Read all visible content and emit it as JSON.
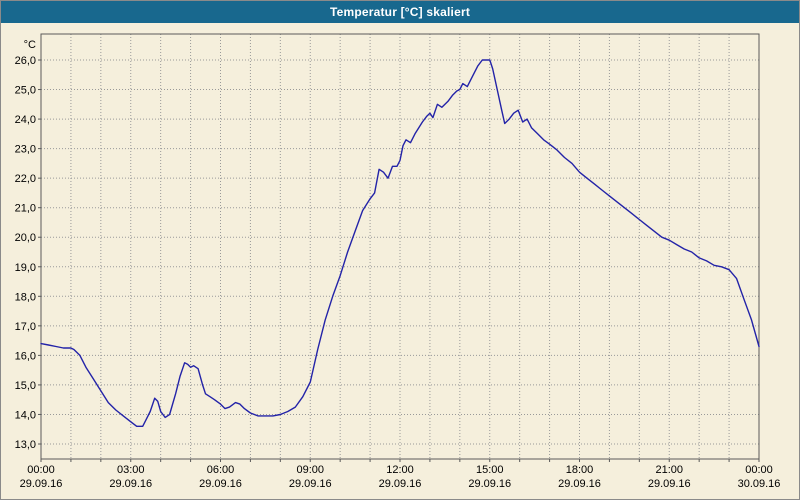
{
  "window": {
    "title": "Temperatur [°C] skaliert"
  },
  "colors": {
    "title_bar": "#18688e",
    "title_text": "#ffffff",
    "background": "#f5efdc",
    "grid": "#999999",
    "frame": "#5a5a5a",
    "text": "#000000",
    "line": "#2323a8"
  },
  "chart_data": {
    "type": "line",
    "title": "Temperatur [°C] skaliert",
    "unit_label": "°C",
    "ylabel": "Temperatur [°C]",
    "ylim": [
      13.0,
      26.0
    ],
    "y_tick_step": 1.0,
    "y_tick_labels": [
      "13,0",
      "14,0",
      "15,0",
      "16,0",
      "17,0",
      "18,0",
      "19,0",
      "20,0",
      "21,0",
      "22,0",
      "23,0",
      "24,0",
      "25,0",
      "26,0"
    ],
    "grid": "dotted",
    "legend_position": "none",
    "x_axis": {
      "hours_span": 24,
      "major_tick_hours": 3,
      "minor_tick_hours": 1,
      "ticks": [
        {
          "time": "00:00",
          "date": "29.09.16"
        },
        {
          "time": "03:00",
          "date": "29.09.16"
        },
        {
          "time": "06:00",
          "date": "29.09.16"
        },
        {
          "time": "09:00",
          "date": "29.09.16"
        },
        {
          "time": "12:00",
          "date": "29.09.16"
        },
        {
          "time": "15:00",
          "date": "29.09.16"
        },
        {
          "time": "18:00",
          "date": "29.09.16"
        },
        {
          "time": "21:00",
          "date": "29.09.16"
        },
        {
          "time": "00:00",
          "date": "30.09.16"
        }
      ]
    },
    "series": [
      {
        "name": "Temperatur",
        "color": "#2323a8",
        "points": [
          [
            0,
            16.4
          ],
          [
            0.25,
            16.35
          ],
          [
            0.5,
            16.3
          ],
          [
            0.75,
            16.25
          ],
          [
            1.0,
            16.25
          ],
          [
            1.1,
            16.2
          ],
          [
            1.3,
            16.0
          ],
          [
            1.5,
            15.6
          ],
          [
            1.75,
            15.2
          ],
          [
            2.0,
            14.8
          ],
          [
            2.25,
            14.4
          ],
          [
            2.5,
            14.15
          ],
          [
            2.75,
            13.95
          ],
          [
            3.0,
            13.75
          ],
          [
            3.2,
            13.6
          ],
          [
            3.4,
            13.6
          ],
          [
            3.5,
            13.8
          ],
          [
            3.65,
            14.1
          ],
          [
            3.8,
            14.55
          ],
          [
            3.9,
            14.45
          ],
          [
            4.0,
            14.1
          ],
          [
            4.15,
            13.9
          ],
          [
            4.3,
            14.0
          ],
          [
            4.5,
            14.7
          ],
          [
            4.65,
            15.3
          ],
          [
            4.8,
            15.75
          ],
          [
            4.9,
            15.7
          ],
          [
            5.0,
            15.6
          ],
          [
            5.1,
            15.65
          ],
          [
            5.25,
            15.55
          ],
          [
            5.4,
            15.0
          ],
          [
            5.5,
            14.7
          ],
          [
            5.65,
            14.6
          ],
          [
            5.8,
            14.5
          ],
          [
            6.0,
            14.35
          ],
          [
            6.15,
            14.2
          ],
          [
            6.3,
            14.25
          ],
          [
            6.5,
            14.4
          ],
          [
            6.65,
            14.35
          ],
          [
            6.8,
            14.2
          ],
          [
            7.0,
            14.05
          ],
          [
            7.25,
            13.95
          ],
          [
            7.5,
            13.95
          ],
          [
            7.75,
            13.95
          ],
          [
            8.0,
            14.0
          ],
          [
            8.25,
            14.1
          ],
          [
            8.5,
            14.25
          ],
          [
            8.75,
            14.6
          ],
          [
            9.0,
            15.1
          ],
          [
            9.25,
            16.2
          ],
          [
            9.5,
            17.2
          ],
          [
            9.75,
            18.0
          ],
          [
            10.0,
            18.7
          ],
          [
            10.25,
            19.5
          ],
          [
            10.5,
            20.2
          ],
          [
            10.75,
            20.9
          ],
          [
            11.0,
            21.3
          ],
          [
            11.15,
            21.5
          ],
          [
            11.3,
            22.3
          ],
          [
            11.45,
            22.2
          ],
          [
            11.6,
            22.0
          ],
          [
            11.75,
            22.4
          ],
          [
            11.9,
            22.4
          ],
          [
            12.0,
            22.6
          ],
          [
            12.1,
            23.1
          ],
          [
            12.2,
            23.3
          ],
          [
            12.35,
            23.2
          ],
          [
            12.5,
            23.5
          ],
          [
            12.75,
            23.9
          ],
          [
            12.9,
            24.1
          ],
          [
            13.0,
            24.2
          ],
          [
            13.1,
            24.05
          ],
          [
            13.25,
            24.5
          ],
          [
            13.4,
            24.4
          ],
          [
            13.6,
            24.6
          ],
          [
            13.75,
            24.8
          ],
          [
            13.9,
            24.95
          ],
          [
            14.0,
            25.0
          ],
          [
            14.1,
            25.2
          ],
          [
            14.25,
            25.1
          ],
          [
            14.4,
            25.4
          ],
          [
            14.6,
            25.8
          ],
          [
            14.75,
            26.0
          ],
          [
            15.0,
            26.0
          ],
          [
            15.1,
            25.7
          ],
          [
            15.25,
            25.0
          ],
          [
            15.4,
            24.3
          ],
          [
            15.5,
            23.85
          ],
          [
            15.65,
            24.0
          ],
          [
            15.8,
            24.2
          ],
          [
            15.95,
            24.3
          ],
          [
            16.1,
            23.9
          ],
          [
            16.25,
            24.0
          ],
          [
            16.4,
            23.7
          ],
          [
            16.6,
            23.5
          ],
          [
            16.8,
            23.3
          ],
          [
            17.0,
            23.15
          ],
          [
            17.25,
            22.95
          ],
          [
            17.5,
            22.7
          ],
          [
            17.75,
            22.5
          ],
          [
            18.0,
            22.2
          ],
          [
            18.25,
            22.0
          ],
          [
            18.5,
            21.8
          ],
          [
            18.75,
            21.6
          ],
          [
            19.0,
            21.4
          ],
          [
            19.25,
            21.2
          ],
          [
            19.5,
            21.0
          ],
          [
            19.75,
            20.8
          ],
          [
            20.0,
            20.6
          ],
          [
            20.25,
            20.4
          ],
          [
            20.5,
            20.2
          ],
          [
            20.75,
            20.0
          ],
          [
            21.0,
            19.9
          ],
          [
            21.25,
            19.75
          ],
          [
            21.5,
            19.6
          ],
          [
            21.75,
            19.5
          ],
          [
            22.0,
            19.3
          ],
          [
            22.25,
            19.2
          ],
          [
            22.5,
            19.05
          ],
          [
            22.75,
            19.0
          ],
          [
            23.0,
            18.9
          ],
          [
            23.25,
            18.6
          ],
          [
            23.5,
            17.9
          ],
          [
            23.75,
            17.2
          ],
          [
            24.0,
            16.3
          ]
        ]
      }
    ]
  }
}
